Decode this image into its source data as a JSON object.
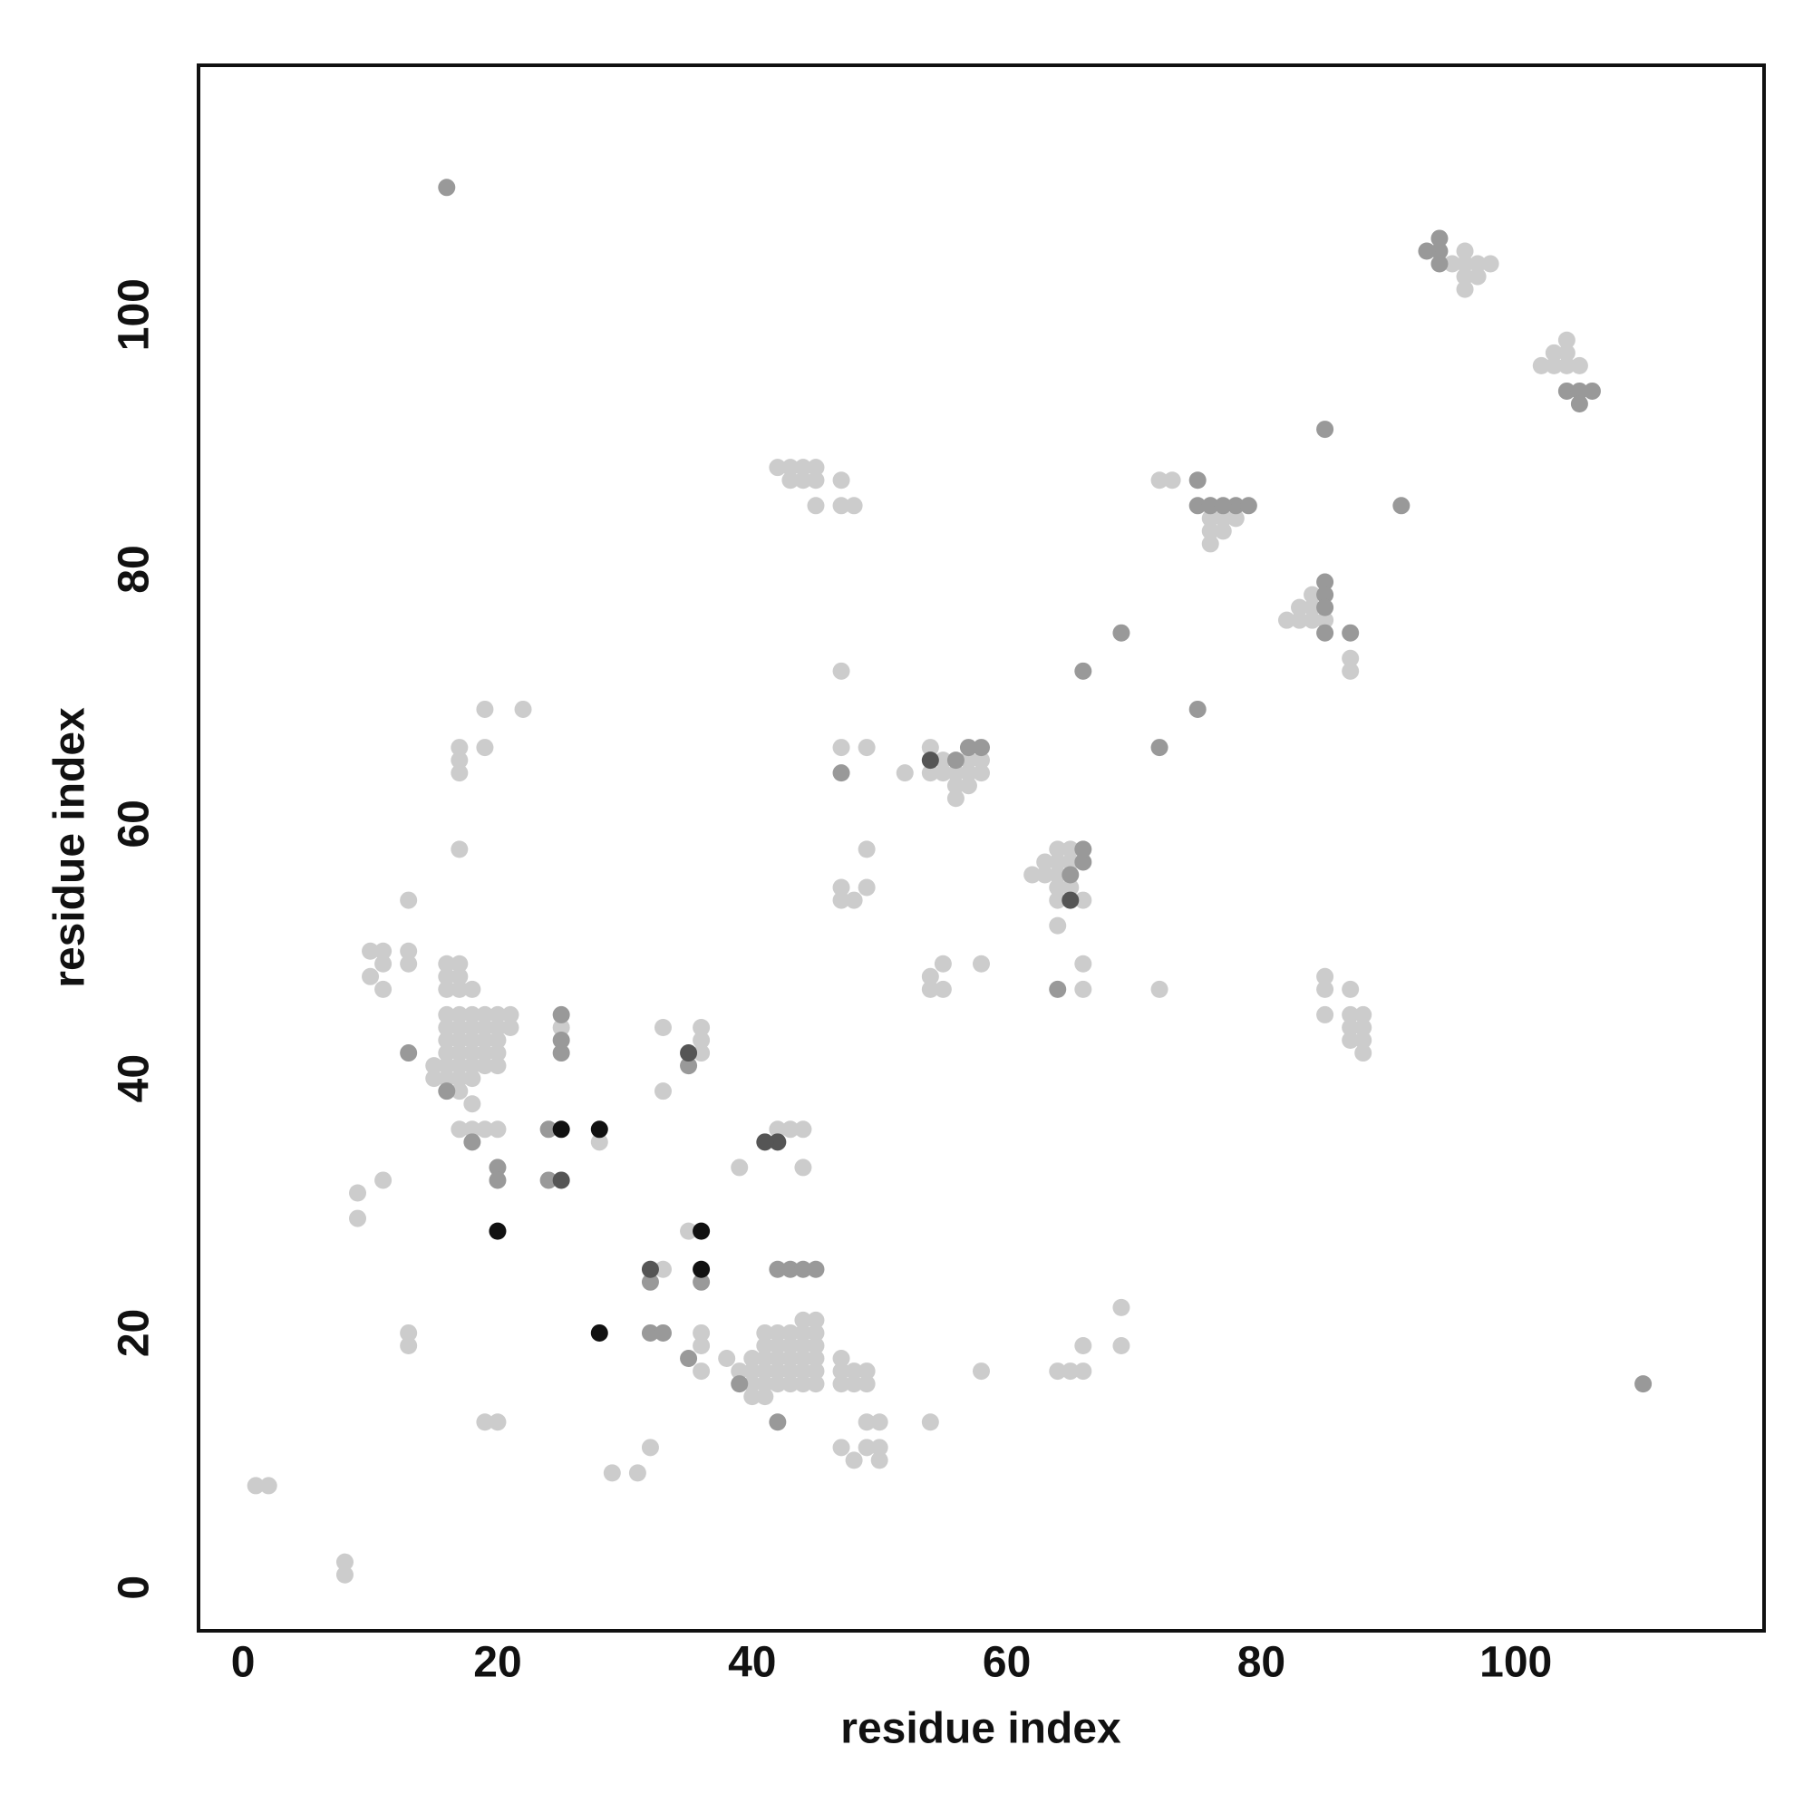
{
  "chart_data": {
    "type": "scatter",
    "xlabel": "residue index",
    "ylabel": "residue index",
    "xlim": [
      -3.5,
      119.5
    ],
    "ylim": [
      -3.4,
      119.6
    ],
    "xticks": [
      0,
      20,
      40,
      60,
      80,
      100
    ],
    "yticks": [
      0,
      20,
      40,
      60,
      80,
      100
    ],
    "series": [
      {
        "color": "#cccccc",
        "x": [
          1,
          2,
          8,
          8,
          9,
          9,
          11,
          29,
          31,
          13,
          13,
          19,
          20,
          10,
          11,
          10,
          11,
          11,
          13,
          13,
          13,
          17,
          17,
          17,
          17,
          19,
          19,
          22,
          15,
          15,
          16,
          16,
          16,
          16,
          16,
          16,
          16,
          16,
          16,
          17,
          17,
          17,
          18,
          17,
          17,
          17,
          17,
          17,
          17,
          17,
          18,
          18,
          18,
          18,
          18,
          18,
          18,
          19,
          19,
          19,
          19,
          19,
          20,
          20,
          20,
          20,
          20,
          21,
          21,
          17,
          18,
          19,
          20,
          25,
          28,
          33,
          33,
          36,
          36,
          36,
          35,
          33,
          32,
          36,
          36,
          36,
          38,
          39,
          39,
          40,
          40,
          40,
          40,
          41,
          41,
          41,
          41,
          41,
          41,
          42,
          42,
          42,
          42,
          42,
          42,
          43,
          43,
          43,
          43,
          43,
          43,
          44,
          44,
          44,
          44,
          44,
          44,
          44,
          45,
          45,
          45,
          45,
          45,
          45,
          44,
          47,
          47,
          47,
          48,
          48,
          49,
          49,
          47,
          48,
          49,
          49,
          50,
          50,
          50,
          54,
          58,
          42,
          43,
          44,
          45,
          43,
          44,
          45,
          45,
          47,
          47,
          48,
          47,
          47,
          49,
          47,
          47,
          48,
          49,
          49,
          52,
          54,
          54,
          55,
          55,
          56,
          56,
          56,
          57,
          57,
          57,
          58,
          58,
          54,
          54,
          55,
          55,
          58,
          62,
          63,
          63,
          64,
          64,
          64,
          64,
          64,
          64,
          65,
          65,
          65,
          66,
          66,
          66,
          64,
          65,
          66,
          66,
          69,
          69,
          72,
          72,
          73,
          76,
          76,
          76,
          76,
          77,
          77,
          78,
          82,
          83,
          83,
          84,
          84,
          84,
          85,
          85,
          85,
          85,
          87,
          87,
          87,
          87,
          88,
          88,
          88,
          88,
          87,
          87,
          95,
          96,
          96,
          96,
          96,
          97,
          97,
          98,
          102,
          103,
          103,
          104,
          104,
          104,
          105
        ],
        "y": [
          8,
          8,
          1,
          2,
          29,
          31,
          32,
          9,
          9,
          19,
          20,
          13,
          13,
          50,
          50,
          48,
          47,
          49,
          50,
          49,
          54,
          58,
          64,
          65,
          66,
          66,
          69,
          69,
          41,
          40,
          40,
          41,
          42,
          43,
          44,
          45,
          47,
          48,
          49,
          49,
          48,
          47,
          47,
          45,
          44,
          43,
          42,
          41,
          40,
          39,
          38,
          40,
          41,
          42,
          43,
          44,
          45,
          41,
          42,
          43,
          44,
          45,
          41,
          42,
          43,
          44,
          45,
          44,
          45,
          36,
          36,
          36,
          36,
          44,
          35,
          39,
          44,
          44,
          43,
          42,
          28,
          25,
          11,
          20,
          19,
          17,
          18,
          17,
          33,
          15,
          16,
          17,
          18,
          15,
          16,
          17,
          18,
          19,
          20,
          16,
          17,
          18,
          19,
          20,
          36,
          16,
          17,
          18,
          19,
          20,
          36,
          16,
          17,
          18,
          19,
          20,
          36,
          33,
          16,
          17,
          18,
          19,
          20,
          21,
          21,
          16,
          17,
          18,
          16,
          17,
          16,
          17,
          11,
          10,
          11,
          13,
          13,
          10,
          11,
          13,
          17,
          88,
          88,
          88,
          88,
          87,
          87,
          87,
          85,
          87,
          85,
          85,
          72,
          66,
          66,
          55,
          54,
          54,
          55,
          58,
          64,
          66,
          64,
          64,
          65,
          64,
          63,
          62,
          63,
          64,
          65,
          64,
          65,
          48,
          47,
          47,
          49,
          49,
          56,
          56,
          57,
          58,
          57,
          56,
          55,
          54,
          52,
          58,
          57,
          55,
          54,
          49,
          47,
          17,
          17,
          17,
          19,
          19,
          22,
          47,
          87,
          87,
          85,
          84,
          83,
          82,
          83,
          84,
          84,
          76,
          76,
          77,
          76,
          77,
          78,
          76,
          47,
          48,
          45,
          47,
          45,
          44,
          43,
          45,
          44,
          43,
          42,
          73,
          72,
          104,
          105,
          104,
          103,
          102,
          103,
          104,
          104,
          96,
          96,
          97,
          97,
          96,
          98,
          96
        ]
      },
      {
        "color": "#999999",
        "x": [
          16,
          110,
          94,
          93,
          94,
          94,
          104,
          105,
          106,
          105,
          85,
          91,
          75,
          75,
          76,
          78,
          79,
          77,
          85,
          85,
          85,
          85,
          87,
          69,
          75,
          66,
          72,
          47,
          64,
          56,
          57,
          58,
          66,
          66,
          65,
          13,
          16,
          18,
          20,
          20,
          24,
          24,
          25,
          25,
          25,
          32,
          32,
          33,
          35,
          35,
          36,
          42,
          43,
          44,
          45,
          39,
          42
        ],
        "y": [
          110,
          16,
          105,
          105,
          106,
          104,
          94,
          94,
          94,
          93,
          91,
          85,
          87,
          85,
          85,
          85,
          85,
          85,
          79,
          78,
          77,
          75,
          75,
          75,
          69,
          72,
          66,
          64,
          47,
          65,
          66,
          66,
          57,
          58,
          56,
          42,
          39,
          35,
          33,
          32,
          36,
          32,
          45,
          43,
          42,
          24,
          20,
          20,
          18,
          41,
          24,
          25,
          25,
          25,
          25,
          16,
          13
        ]
      },
      {
        "color": "#555555",
        "x": [
          32,
          35,
          42,
          41,
          54,
          65,
          25
        ],
        "y": [
          25,
          42,
          35,
          35,
          65,
          54,
          32
        ]
      },
      {
        "color": "#111111",
        "x": [
          20,
          28,
          25,
          28,
          36,
          36
        ],
        "y": [
          28,
          20,
          36,
          36,
          28,
          25
        ]
      }
    ]
  }
}
